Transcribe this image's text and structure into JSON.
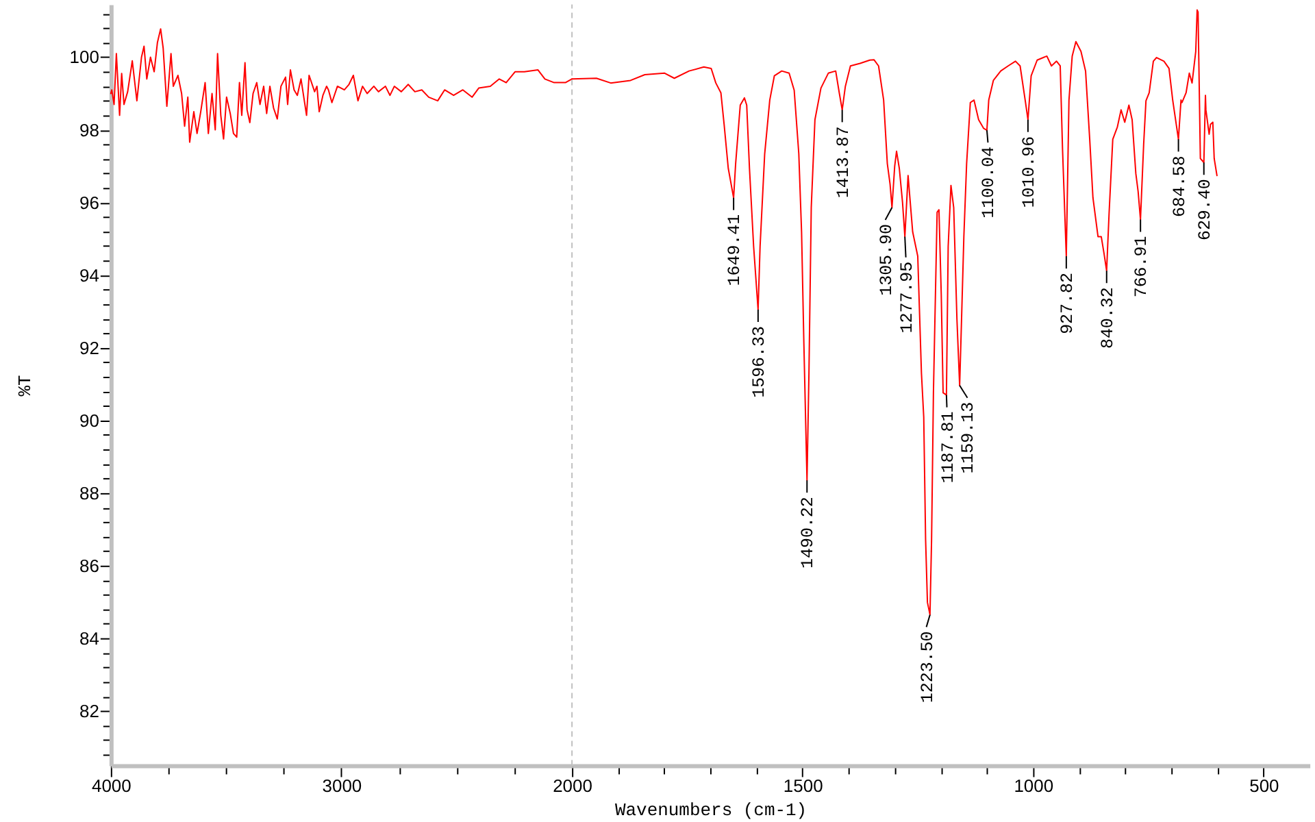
{
  "chart_data": [
    {
      "type": "line",
      "ylabel": "%T",
      "xlim": [
        4000,
        2000
      ],
      "ylim": [
        80.5,
        101.45
      ],
      "xticks": [
        4000,
        {
          "value": 3750,
          "label": null
        },
        {
          "value": 3500,
          "label": null
        },
        {
          "value": 3250,
          "label": null
        },
        3000,
        {
          "value": 2750,
          "label": null
        },
        {
          "value": 2500,
          "label": null
        },
        {
          "value": 2250,
          "label": null
        },
        2000
      ],
      "yticks": [
        {
          "value": 80.8,
          "label": null
        },
        {
          "value": 81.2,
          "label": null
        },
        {
          "value": 81.6,
          "label": null
        },
        82,
        {
          "value": 82.4,
          "label": null
        },
        {
          "value": 82.8,
          "label": null
        },
        {
          "value": 83.2,
          "label": null
        },
        {
          "value": 83.6,
          "label": null
        },
        84,
        {
          "value": 84.4,
          "label": null
        },
        {
          "value": 84.8,
          "label": null
        },
        {
          "value": 85.2,
          "label": null
        },
        {
          "value": 85.6,
          "label": null
        },
        86,
        {
          "value": 86.4,
          "label": null
        },
        {
          "value": 86.8,
          "label": null
        },
        {
          "value": 87.2,
          "label": null
        },
        {
          "value": 87.6,
          "label": null
        },
        88,
        {
          "value": 88.4,
          "label": null
        },
        {
          "value": 88.8,
          "label": null
        },
        {
          "value": 89.2,
          "label": null
        },
        {
          "value": 89.6,
          "label": null
        },
        90,
        {
          "value": 90.4,
          "label": null
        },
        {
          "value": 90.8,
          "label": null
        },
        {
          "value": 91.2,
          "label": null
        },
        {
          "value": 91.6,
          "label": null
        },
        92,
        {
          "value": 92.4,
          "label": null
        },
        {
          "value": 92.8,
          "label": null
        },
        {
          "value": 93.2,
          "label": null
        },
        {
          "value": 93.6,
          "label": null
        },
        94,
        {
          "value": 94.4,
          "label": null
        },
        {
          "value": 94.8,
          "label": null
        },
        {
          "value": 95.2,
          "label": null
        },
        {
          "value": 95.6,
          "label": null
        },
        96,
        {
          "value": 96.4,
          "label": null
        },
        {
          "value": 96.8,
          "label": null
        },
        {
          "value": 97.2,
          "label": null
        },
        {
          "value": 97.6,
          "label": null
        },
        98,
        {
          "value": 98.4,
          "label": null
        },
        {
          "value": 98.8,
          "label": null
        },
        {
          "value": 99.2,
          "label": null
        },
        {
          "value": 99.6,
          "label": null
        },
        100,
        {
          "value": 100.4,
          "label": null
        },
        {
          "value": 100.8,
          "label": null
        },
        {
          "value": 101.2,
          "label": null
        }
      ],
      "x": [
        4000,
        3996,
        3986,
        3976,
        3962,
        3953,
        3943,
        3927,
        3907,
        3887,
        3867,
        3856,
        3844,
        3828,
        3812,
        3798,
        3784,
        3773,
        3757,
        3739,
        3729,
        3709,
        3693,
        3680,
        3666,
        3658,
        3640,
        3626,
        3610,
        3591,
        3577,
        3561,
        3547,
        3537,
        3523,
        3511,
        3498,
        3482,
        3468,
        3454,
        3442,
        3432,
        3418,
        3409,
        3397,
        3383,
        3367,
        3353,
        3337,
        3324,
        3310,
        3294,
        3278,
        3262,
        3242,
        3233,
        3221,
        3205,
        3191,
        3175,
        3151,
        3140,
        3116,
        3106,
        3096,
        3080,
        3064,
        3056,
        3041,
        3017,
        2987,
        2967,
        2948,
        2928,
        2908,
        2888,
        2859,
        2839,
        2809,
        2789,
        2770,
        2740,
        2710,
        2681,
        2651,
        2621,
        2582,
        2552,
        2513,
        2473,
        2433,
        2404,
        2354,
        2315,
        2285,
        2246,
        2206,
        2147,
        2117,
        2077,
        2028,
        2000
      ],
      "series": [
        {
          "color": "#ff0000",
          "values": [
            99.0,
            99.1,
            98.7,
            100.1,
            98.4,
            99.55,
            98.7,
            99.05,
            99.9,
            98.8,
            100.0,
            100.3,
            99.4,
            100.0,
            99.6,
            100.4,
            100.78,
            100.25,
            98.65,
            100.1,
            99.2,
            99.5,
            99.0,
            98.1,
            98.9,
            97.66,
            98.5,
            97.9,
            98.5,
            99.3,
            97.9,
            99.0,
            98.0,
            100.1,
            98.4,
            97.75,
            98.9,
            98.45,
            97.9,
            97.8,
            99.3,
            98.4,
            99.85,
            98.55,
            98.2,
            99.0,
            99.3,
            98.7,
            99.2,
            98.45,
            99.2,
            98.6,
            98.3,
            99.2,
            99.45,
            98.7,
            99.65,
            99.1,
            98.95,
            99.4,
            98.4,
            99.5,
            99.05,
            99.2,
            98.5,
            98.95,
            99.2,
            99.1,
            98.75,
            99.2,
            99.1,
            99.25,
            99.5,
            98.8,
            99.2,
            99.0,
            99.2,
            99.05,
            99.2,
            98.95,
            99.2,
            99.05,
            99.25,
            99.05,
            99.1,
            98.9,
            98.8,
            99.1,
            98.95,
            99.1,
            98.9,
            99.15,
            99.2,
            99.4,
            99.3,
            99.6,
            99.6,
            99.65,
            99.4,
            99.3,
            99.3,
            99.4
          ]
        }
      ]
    },
    {
      "type": "line",
      "xlabel": "Wavenumbers (cm-1)",
      "xlim": [
        2000,
        400
      ],
      "ylim": [
        80.5,
        101.45
      ],
      "tick_labels": "x",
      "xticks": [
        {
          "value": 1900,
          "label": null
        },
        {
          "value": 1800,
          "label": null
        },
        {
          "value": 1700,
          "label": null
        },
        {
          "value": 1600,
          "label": null
        },
        1500,
        {
          "value": 1400,
          "label": null
        },
        {
          "value": 1300,
          "label": null
        },
        {
          "value": 1200,
          "label": null
        },
        {
          "value": 1100,
          "label": null
        },
        1000,
        {
          "value": 900,
          "label": null
        },
        {
          "value": 800,
          "label": null
        },
        {
          "value": 700,
          "label": null
        },
        {
          "value": 600,
          "label": null
        },
        500
      ],
      "x": [
        2000,
        1947,
        1916,
        1873,
        1842,
        1799,
        1778,
        1746,
        1714,
        1698,
        1688,
        1677,
        1670,
        1661,
        1649.41,
        1645,
        1635,
        1626,
        1621,
        1615,
        1606,
        1596.33,
        1592,
        1582,
        1571,
        1561,
        1545,
        1529,
        1518,
        1508,
        1502,
        1497,
        1490.22,
        1486,
        1481,
        1473,
        1460,
        1444,
        1428,
        1420,
        1413.87,
        1407,
        1396,
        1375,
        1354,
        1345,
        1335,
        1324,
        1316,
        1310,
        1305.9,
        1300,
        1296,
        1290,
        1283,
        1277.95,
        1271,
        1261,
        1250,
        1242,
        1237,
        1233,
        1229,
        1223.5,
        1220,
        1216,
        1208,
        1204,
        1199,
        1195,
        1187.81,
        1184,
        1178,
        1172,
        1165,
        1159.13,
        1155,
        1150,
        1144,
        1136,
        1128,
        1118,
        1107,
        1100.04,
        1096,
        1086,
        1070,
        1054,
        1038,
        1028,
        1017,
        1010.96,
        1004,
        991,
        970,
        960,
        949,
        941,
        936,
        927.82,
        922,
        915,
        907,
        896,
        886,
        877,
        870,
        859,
        852,
        846,
        840.32,
        835,
        827,
        817,
        809,
        801,
        792,
        785,
        777,
        772,
        766.91,
        760,
        755,
        748,
        739,
        732,
        716,
        705,
        697,
        684.58,
        679,
        677,
        668,
        661,
        655,
        647,
        644,
        642,
        637,
        629.4,
        626,
        625,
        618,
        615,
        610,
        607,
        601
      ],
      "series": [
        {
          "color": "#ff0000",
          "values": [
            99.4,
            99.42,
            99.29,
            99.36,
            99.52,
            99.56,
            99.42,
            99.62,
            99.73,
            99.69,
            99.29,
            99.02,
            98.15,
            96.94,
            96.13,
            97.07,
            98.68,
            98.88,
            98.68,
            96.94,
            94.79,
            93.05,
            94.79,
            97.34,
            98.82,
            99.49,
            99.62,
            99.56,
            99.09,
            97.34,
            95.19,
            92.11,
            88.35,
            91.3,
            95.86,
            98.28,
            99.15,
            99.56,
            99.62,
            99.0,
            98.55,
            99.2,
            99.76,
            99.83,
            99.92,
            99.93,
            99.76,
            98.82,
            97.07,
            96.5,
            95.86,
            97.0,
            97.41,
            96.94,
            96.0,
            95.06,
            96.74,
            95.19,
            94.52,
            91.3,
            90.09,
            86.73,
            84.99,
            84.65,
            86.73,
            90.76,
            95.73,
            95.8,
            93.45,
            90.76,
            90.7,
            94.79,
            96.47,
            95.86,
            92.78,
            90.96,
            92.78,
            95.06,
            97.07,
            98.75,
            98.82,
            98.28,
            98.04,
            97.99,
            98.82,
            99.36,
            99.62,
            99.76,
            99.89,
            99.76,
            98.82,
            98.28,
            99.49,
            99.92,
            100.03,
            99.76,
            99.89,
            99.76,
            97.48,
            94.52,
            98.82,
            100.03,
            100.43,
            100.16,
            99.62,
            97.74,
            96.13,
            95.06,
            95.06,
            94.6,
            94.12,
            95.7,
            97.74,
            98.08,
            98.55,
            98.21,
            98.68,
            98.28,
            96.8,
            96.3,
            95.53,
            97.6,
            98.8,
            99.02,
            99.89,
            99.99,
            99.89,
            99.69,
            98.82,
            97.74,
            98.82,
            98.75,
            99.02,
            99.56,
            99.29,
            100.16,
            101.3,
            101.24,
            97.21,
            97.1,
            98.95,
            98.55,
            97.88,
            98.15,
            98.21,
            97.21,
            96.74
          ]
        }
      ],
      "annotations": [
        {
          "text": "1649.41",
          "x": 1649.41,
          "y": 96.13
        },
        {
          "text": "1596.33",
          "x": 1596.33,
          "y": 93.05
        },
        {
          "text": "1490.22",
          "x": 1490.22,
          "y": 88.35
        },
        {
          "text": "1413.87",
          "x": 1413.87,
          "y": 98.55
        },
        {
          "text": "1305.90",
          "x": 1305.9,
          "y": 95.86
        },
        {
          "text": "1277.95",
          "x": 1277.95,
          "y": 95.06
        },
        {
          "text": "1223.50",
          "x": 1223.5,
          "y": 84.65
        },
        {
          "text": "1187.81",
          "x": 1187.81,
          "y": 90.7
        },
        {
          "text": "1159.13",
          "x": 1159.13,
          "y": 90.96
        },
        {
          "text": "1100.04",
          "x": 1100.04,
          "y": 97.99
        },
        {
          "text": "1010.96",
          "x": 1010.96,
          "y": 98.28
        },
        {
          "text": "927.82",
          "x": 927.82,
          "y": 94.52
        },
        {
          "text": "840.32",
          "x": 840.32,
          "y": 94.12
        },
        {
          "text": "766.91",
          "x": 766.91,
          "y": 95.53
        },
        {
          "text": "684.58",
          "x": 684.58,
          "y": 97.74
        },
        {
          "text": "629.40",
          "x": 629.4,
          "y": 97.1
        }
      ],
      "ref_lines": [
        {
          "axis": "x",
          "value": 2000,
          "color": "#c0c0c0",
          "line_style": "dashed"
        }
      ]
    }
  ]
}
